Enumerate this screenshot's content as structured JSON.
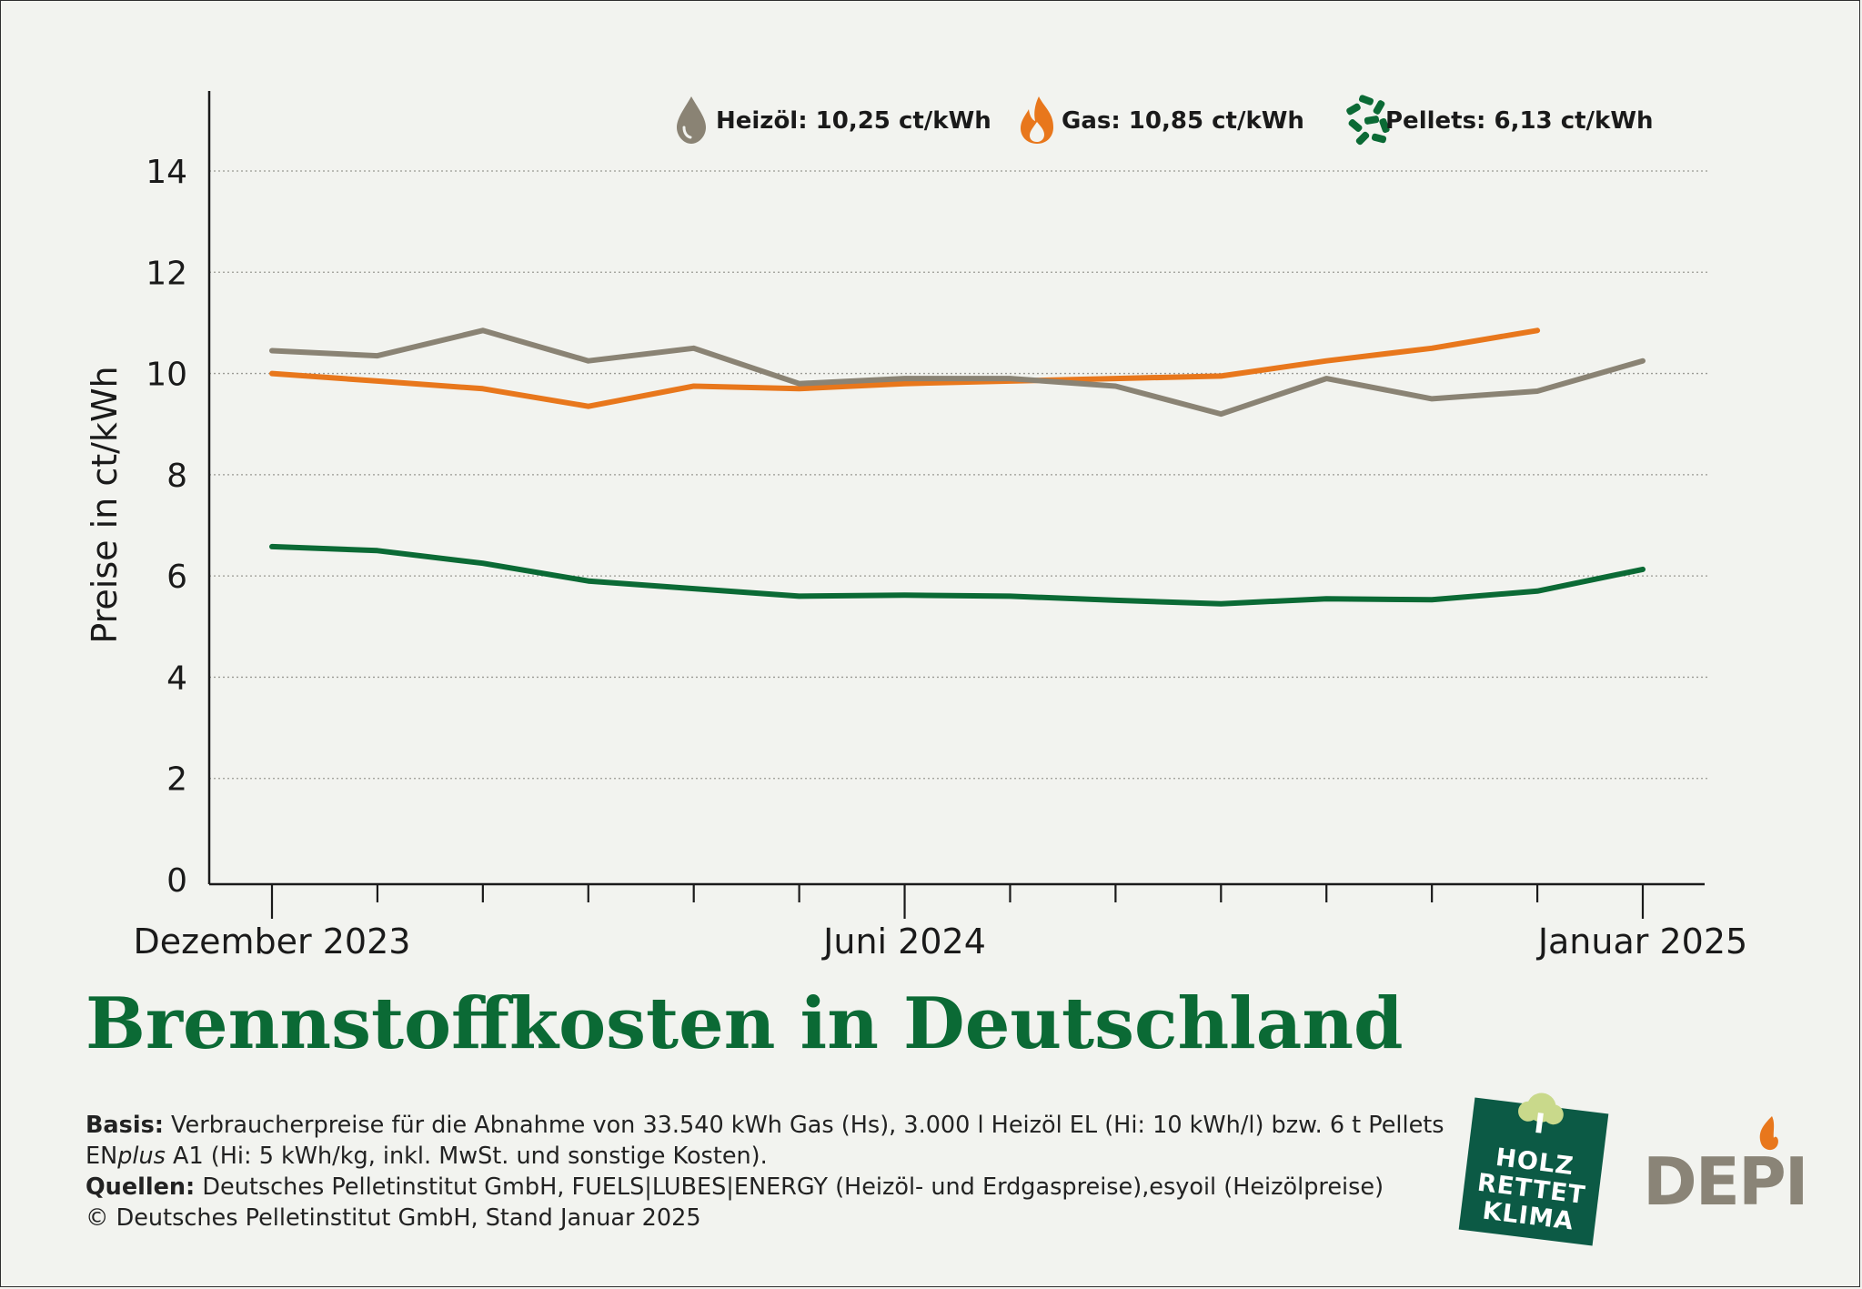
{
  "chart_data": {
    "type": "line",
    "title": "Brennstoffkosten in Deutschland",
    "ylabel": "Preise in ct/kWh",
    "xlabel": "",
    "ylim": [
      0,
      14
    ],
    "yticks": [
      0,
      2,
      4,
      6,
      8,
      10,
      12,
      14
    ],
    "x_count": 14,
    "x_labels": [
      {
        "index": 0,
        "label": "Dezember 2023"
      },
      {
        "index": 6,
        "label": "Juni 2024"
      },
      {
        "index": 13,
        "label": "Januar 2025"
      }
    ],
    "grid": true,
    "legend_position": "top-right",
    "series": [
      {
        "name": "Heizöl",
        "legend_label": "Heizöl: 10,25 ct/kWh",
        "color": "#8a8374",
        "icon": "oil-drop-icon",
        "values": [
          10.45,
          10.35,
          10.85,
          10.25,
          10.5,
          9.8,
          9.9,
          9.9,
          9.75,
          9.2,
          9.9,
          9.5,
          9.65,
          10.25
        ]
      },
      {
        "name": "Gas",
        "legend_label": "Gas: 10,85 ct/kWh",
        "color": "#e8771c",
        "icon": "flame-icon",
        "values": [
          10.0,
          9.85,
          9.7,
          9.35,
          9.75,
          9.7,
          9.8,
          9.85,
          9.9,
          9.95,
          10.25,
          10.5,
          10.85,
          null
        ]
      },
      {
        "name": "Pellets",
        "legend_label": "Pellets: 6,13 ct/kWh",
        "color": "#0b6a35",
        "icon": "pellets-icon",
        "values": [
          6.58,
          6.5,
          6.25,
          5.9,
          5.75,
          5.6,
          5.62,
          5.6,
          5.52,
          5.45,
          5.55,
          5.53,
          5.7,
          6.13
        ]
      }
    ]
  },
  "footnotes": {
    "basis_label": "Basis:",
    "basis_text": " Verbraucherpreise für die Abnahme von 33.540 kWh Gas (Hs), 3.000 l Heizöl EL (Hi: 10 kWh/l) bzw. 6 t Pellets",
    "basis_text2_pre": "EN",
    "basis_text2_italic": "plus",
    "basis_text2_post": " A1 (Hi: 5 kWh/kg, inkl. MwSt. und sonstige Kosten).",
    "quellen_label": "Quellen:",
    "quellen_text": " Deutsches Pelletinstitut GmbH, FUELS|LUBES|ENERGY (Heizöl- und Erdgaspreise),esyoil (Heizölpreise)",
    "copyright": "© Deutsches Pelletinstitut GmbH, Stand Januar 2025"
  },
  "logos": {
    "holz_line1": "HOLZ",
    "holz_line2": "RETTET",
    "holz_line3": "KLIMA",
    "depi": "DEPI"
  },
  "colors": {
    "background": "#f2f3ef",
    "title": "#0b6a35",
    "holz_logo": "#0c5a45",
    "depi_text": "#8a8477",
    "depi_flame": "#e8771c"
  }
}
